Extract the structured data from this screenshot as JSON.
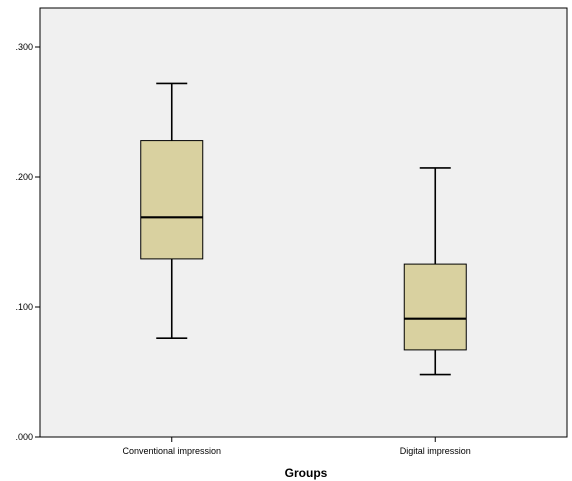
{
  "chart_data": {
    "type": "boxplot",
    "title": "",
    "xlabel": "Groups",
    "ylabel": "",
    "ylim": [
      0,
      0.33
    ],
    "yticks": [
      0,
      0.1,
      0.2,
      0.3
    ],
    "ytick_labels": [
      ".000",
      ".100",
      ".200",
      ".300"
    ],
    "grid": false,
    "categories": [
      "Conventional impression",
      "Digital impression"
    ],
    "boxes": [
      {
        "category": "Conventional impression",
        "min": 0.076,
        "q1": 0.137,
        "median": 0.169,
        "q3": 0.228,
        "max": 0.272
      },
      {
        "category": "Digital impression",
        "min": 0.048,
        "q1": 0.067,
        "median": 0.091,
        "q3": 0.133,
        "max": 0.207
      }
    ],
    "colors": {
      "plot_background": "#f0f0f0",
      "box_fill": "#d9d1a0",
      "stroke": "#000000"
    }
  }
}
